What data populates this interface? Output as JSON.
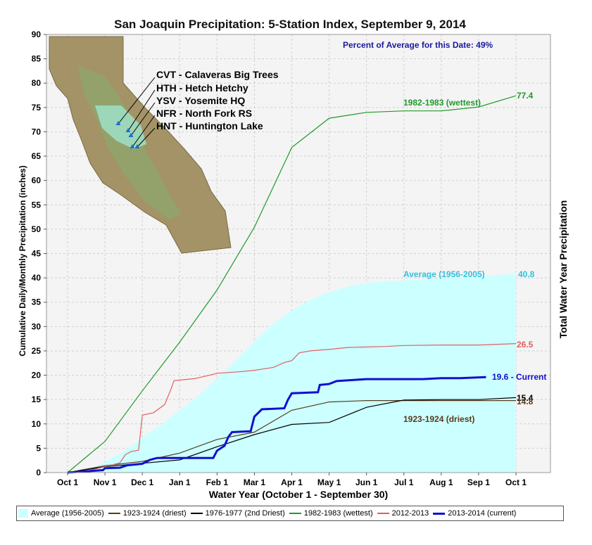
{
  "chart_data": {
    "type": "line",
    "title": "San Joaquin Precipitation: 5-Station Index, September 9, 2014",
    "subtitle": "Percent of Average for this Date: 49%",
    "xlabel": "Water Year (October 1 - September 30)",
    "ylabel": "Cumulative Daily/Monthly Precipitation (inches)",
    "ylabel_right": "Total Water Year Precipitation",
    "x_ticks": [
      "Oct 1",
      "Nov 1",
      "Dec 1",
      "Jan 1",
      "Feb 1",
      "Mar 1",
      "Apr 1",
      "May 1",
      "Jun 1",
      "Jul 1",
      "Aug 1",
      "Sep 1",
      "Oct 1"
    ],
    "ylim": [
      0,
      90
    ],
    "y_ticks": [
      0,
      5,
      10,
      15,
      20,
      25,
      30,
      35,
      40,
      45,
      50,
      55,
      60,
      65,
      70,
      75,
      80,
      85,
      90
    ],
    "grid": true,
    "legend_position": "bottom",
    "stations": [
      "CVT - Calaveras Big Trees",
      "HTH - Hetch Hetchy",
      "YSV - Yosemite HQ",
      "NFR - North Fork RS",
      "HNT - Huntington Lake"
    ],
    "series": [
      {
        "name": "Average (1956-2005)",
        "style": "area",
        "color": "#ccffff",
        "end_label": "40.8",
        "annotation": "Average (1956-2005)",
        "points": [
          [
            0,
            0
          ],
          [
            0.5,
            0.6
          ],
          [
            1,
            2.2
          ],
          [
            1.5,
            4.3
          ],
          [
            2,
            7.2
          ],
          [
            2.5,
            9.8
          ],
          [
            3,
            12.8
          ],
          [
            3.5,
            15.8
          ],
          [
            4,
            19.3
          ],
          [
            4.5,
            23
          ],
          [
            5,
            27
          ],
          [
            5.5,
            30.5
          ],
          [
            6,
            33.3
          ],
          [
            6.5,
            35.5
          ],
          [
            7,
            37.1
          ],
          [
            7.5,
            38.2
          ],
          [
            8,
            38.9
          ],
          [
            8.5,
            39.3
          ],
          [
            9,
            39.5
          ],
          [
            9.5,
            39.7
          ],
          [
            10,
            39.9
          ],
          [
            10.5,
            40.1
          ],
          [
            11,
            40.3
          ],
          [
            11.5,
            40.6
          ],
          [
            12,
            40.8
          ]
        ]
      },
      {
        "name": "1923-1924 (driest)",
        "color": "#5a3a1a",
        "end_label": "14.8",
        "annotation": "1923-1924 (driest)",
        "points": [
          [
            0,
            0
          ],
          [
            1,
            1.4
          ],
          [
            2,
            2.3
          ],
          [
            3,
            4
          ],
          [
            4,
            6.8
          ],
          [
            5,
            8.3
          ],
          [
            6,
            12.8
          ],
          [
            7,
            14.5
          ],
          [
            8,
            14.8
          ],
          [
            9,
            14.8
          ],
          [
            10,
            14.8
          ],
          [
            11,
            14.8
          ],
          [
            12,
            14.8
          ]
        ]
      },
      {
        "name": "1976-1977 (2nd Driest)",
        "color": "#000000",
        "end_label": "15.4",
        "points": [
          [
            0,
            0
          ],
          [
            1,
            1.2
          ],
          [
            2,
            1.9
          ],
          [
            3,
            2.6
          ],
          [
            4,
            5.3
          ],
          [
            5,
            7.8
          ],
          [
            6,
            9.9
          ],
          [
            7,
            10.3
          ],
          [
            8,
            13.4
          ],
          [
            9,
            14.9
          ],
          [
            10,
            15
          ],
          [
            11,
            15
          ],
          [
            12,
            15.4
          ]
        ]
      },
      {
        "name": "1982-1983 (wettest)",
        "color": "#22992a",
        "end_label": "77.4",
        "annotation": "1982-1983 (wettest)",
        "points": [
          [
            0,
            0
          ],
          [
            1,
            6.4
          ],
          [
            2,
            16.8
          ],
          [
            3,
            26.8
          ],
          [
            4,
            37.5
          ],
          [
            5,
            50.4
          ],
          [
            6,
            66.8
          ],
          [
            7,
            72.8
          ],
          [
            8,
            74
          ],
          [
            9,
            74.3
          ],
          [
            10,
            74.3
          ],
          [
            11,
            75.1
          ],
          [
            12,
            77.4
          ]
        ]
      },
      {
        "name": "2012-2013",
        "color": "#e06060",
        "end_label": "26.5",
        "points": [
          [
            0,
            0
          ],
          [
            0.5,
            0.3
          ],
          [
            1,
            1.2
          ],
          [
            1.4,
            2
          ],
          [
            1.55,
            3.7
          ],
          [
            1.7,
            4.3
          ],
          [
            1.9,
            4.6
          ],
          [
            2,
            11.8
          ],
          [
            2.3,
            12.3
          ],
          [
            2.6,
            14
          ],
          [
            2.75,
            16.8
          ],
          [
            2.85,
            18.9
          ],
          [
            3,
            19
          ],
          [
            3.4,
            19.3
          ],
          [
            3.8,
            20
          ],
          [
            4,
            20.4
          ],
          [
            4.6,
            20.7
          ],
          [
            5,
            21
          ],
          [
            5.5,
            21.6
          ],
          [
            5.8,
            22.6
          ],
          [
            6,
            23
          ],
          [
            6.2,
            24.6
          ],
          [
            6.5,
            25
          ],
          [
            7,
            25.3
          ],
          [
            7.5,
            25.7
          ],
          [
            8,
            25.8
          ],
          [
            8.5,
            25.9
          ],
          [
            9,
            26.1
          ],
          [
            10,
            26.2
          ],
          [
            11,
            26.2
          ],
          [
            12,
            26.5
          ]
        ]
      },
      {
        "name": "2013-2014 (current)",
        "color": "#1010d0",
        "end_label": "19.6 -  Current",
        "points": [
          [
            0,
            0
          ],
          [
            0.6,
            0.3
          ],
          [
            0.95,
            0.5
          ],
          [
            1,
            0.9
          ],
          [
            1.4,
            1
          ],
          [
            1.6,
            1.5
          ],
          [
            2,
            1.8
          ],
          [
            2.2,
            2.6
          ],
          [
            2.3,
            2.8
          ],
          [
            2.4,
            3
          ],
          [
            3,
            3
          ],
          [
            3.5,
            3
          ],
          [
            3.9,
            3
          ],
          [
            4,
            4.5
          ],
          [
            4.2,
            5.5
          ],
          [
            4.3,
            7.3
          ],
          [
            4.4,
            8.3
          ],
          [
            4.9,
            8.5
          ],
          [
            5,
            11.5
          ],
          [
            5.2,
            13
          ],
          [
            5.8,
            13.2
          ],
          [
            5.9,
            15
          ],
          [
            6,
            16.3
          ],
          [
            6.7,
            16.5
          ],
          [
            6.75,
            18
          ],
          [
            7,
            18.2
          ],
          [
            7.2,
            18.8
          ],
          [
            7.6,
            19
          ],
          [
            8,
            19.2
          ],
          [
            9,
            19.2
          ],
          [
            9.5,
            19.2
          ],
          [
            10,
            19.4
          ],
          [
            10.5,
            19.4
          ],
          [
            11.2,
            19.6
          ]
        ]
      }
    ]
  }
}
